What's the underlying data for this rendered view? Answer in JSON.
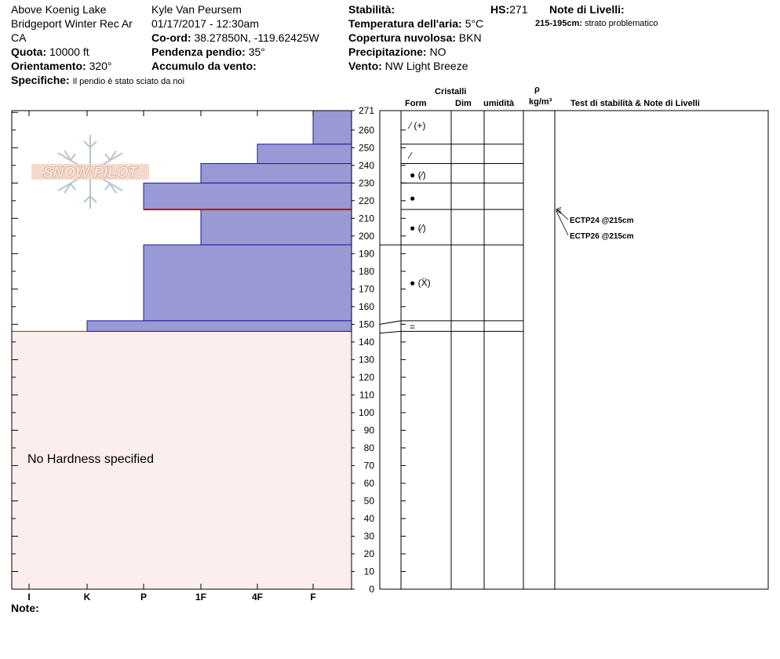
{
  "header": {
    "location_name": "Above Koenig Lake",
    "region": "Bridgeport Winter Rec Ar",
    "state": "CA",
    "elevation_label": "Quota:",
    "elevation_value": "10000 ft",
    "aspect_label": "Orientamento:",
    "aspect_value": "320°",
    "specifics_label": "Specifiche:",
    "specifics_value": "Il pendio è stato sciato da noi",
    "observer": "Kyle Van Peursem",
    "datetime": "01/17/2017 - 12:30am",
    "coord_label": "Co-ord:",
    "coord_value": "38.27850N, -119.62425W",
    "slope_label": "Pendenza pendio:",
    "slope_value": "35°",
    "wind_loading_label": "Accumulo da vento:",
    "stability_label": "Stabilità:",
    "hs_label": "HS:",
    "hs_value": "271",
    "air_temp_label": "Temperatura dell'aria:",
    "air_temp_value": "5°C",
    "cloud_label": "Copertura nuvolosa:",
    "cloud_value": "BKN",
    "precip_label": "Precipitazione:",
    "precip_value": "NO",
    "wind_label": "Vento:",
    "wind_value": "NW Light Breeze",
    "layer_notes_label": "Note di Livelli:",
    "layer_note_depth": "215-195cm:",
    "layer_note_text": "strato problematico"
  },
  "columns": {
    "crystals": "Cristalli",
    "form": "Form",
    "dim": "Dim",
    "moisture": "umidità",
    "rho": "ρ",
    "density_unit": "kg/m³",
    "tests_notes": "Test di stabilità & Note di Livelli"
  },
  "watermark": "SNOW PILOT",
  "no_hardness_text": "No Hardness specified",
  "note_label": "Note:",
  "colors": {
    "hardness_fill": "#9999d6",
    "hardness_stroke": "#1a1aa0",
    "below_fill": "#fdeeee",
    "problem_line": "#cc0000",
    "watermark": "#d9a08a"
  },
  "chart_data": {
    "type": "bar",
    "orientation": "horizontal",
    "xlabel": "",
    "ylabel": "",
    "hardness_scale": [
      "I",
      "K",
      "P",
      "1F",
      "4F",
      "F"
    ],
    "hardness_scale_note": "printed left to right along the hardness axis",
    "ylim": [
      0,
      271
    ],
    "y_ticks": [
      0,
      10,
      20,
      30,
      40,
      50,
      60,
      70,
      80,
      90,
      100,
      110,
      120,
      130,
      140,
      150,
      160,
      170,
      180,
      190,
      200,
      210,
      220,
      230,
      240,
      250,
      260,
      271
    ],
    "layers": [
      {
        "top": 271,
        "bottom": 252,
        "hardness": "F"
      },
      {
        "top": 252,
        "bottom": 241,
        "hardness": "4F"
      },
      {
        "top": 241,
        "bottom": 230,
        "hardness": "1F"
      },
      {
        "top": 230,
        "bottom": 215,
        "hardness": "P"
      },
      {
        "top": 215,
        "bottom": 195,
        "hardness": "1F"
      },
      {
        "top": 195,
        "bottom": 152,
        "hardness": "P"
      },
      {
        "top": 152,
        "bottom": 146,
        "hardness": "K"
      }
    ],
    "unspecified_below": 146,
    "problem_layer_depth": 215,
    "crystal_layer_boundaries": [
      271,
      252,
      241,
      230,
      215,
      195,
      152,
      146
    ],
    "crystal_forms": [
      {
        "depth": 263,
        "symbol": "⁄ (+)"
      },
      {
        "depth": 246,
        "symbol": "⁄"
      },
      {
        "depth": 235,
        "symbol": "● (⁄)"
      },
      {
        "depth": 222,
        "symbol": "●"
      },
      {
        "depth": 205,
        "symbol": "● (⁄)"
      },
      {
        "depth": 174,
        "symbol": "● (Ẍ)"
      },
      {
        "depth": 149,
        "symbol": "="
      }
    ],
    "stability_tests": [
      {
        "label": "ECTP24 @215cm",
        "depth": 215
      },
      {
        "label": "ECTP26 @215cm",
        "depth": 215
      }
    ]
  }
}
